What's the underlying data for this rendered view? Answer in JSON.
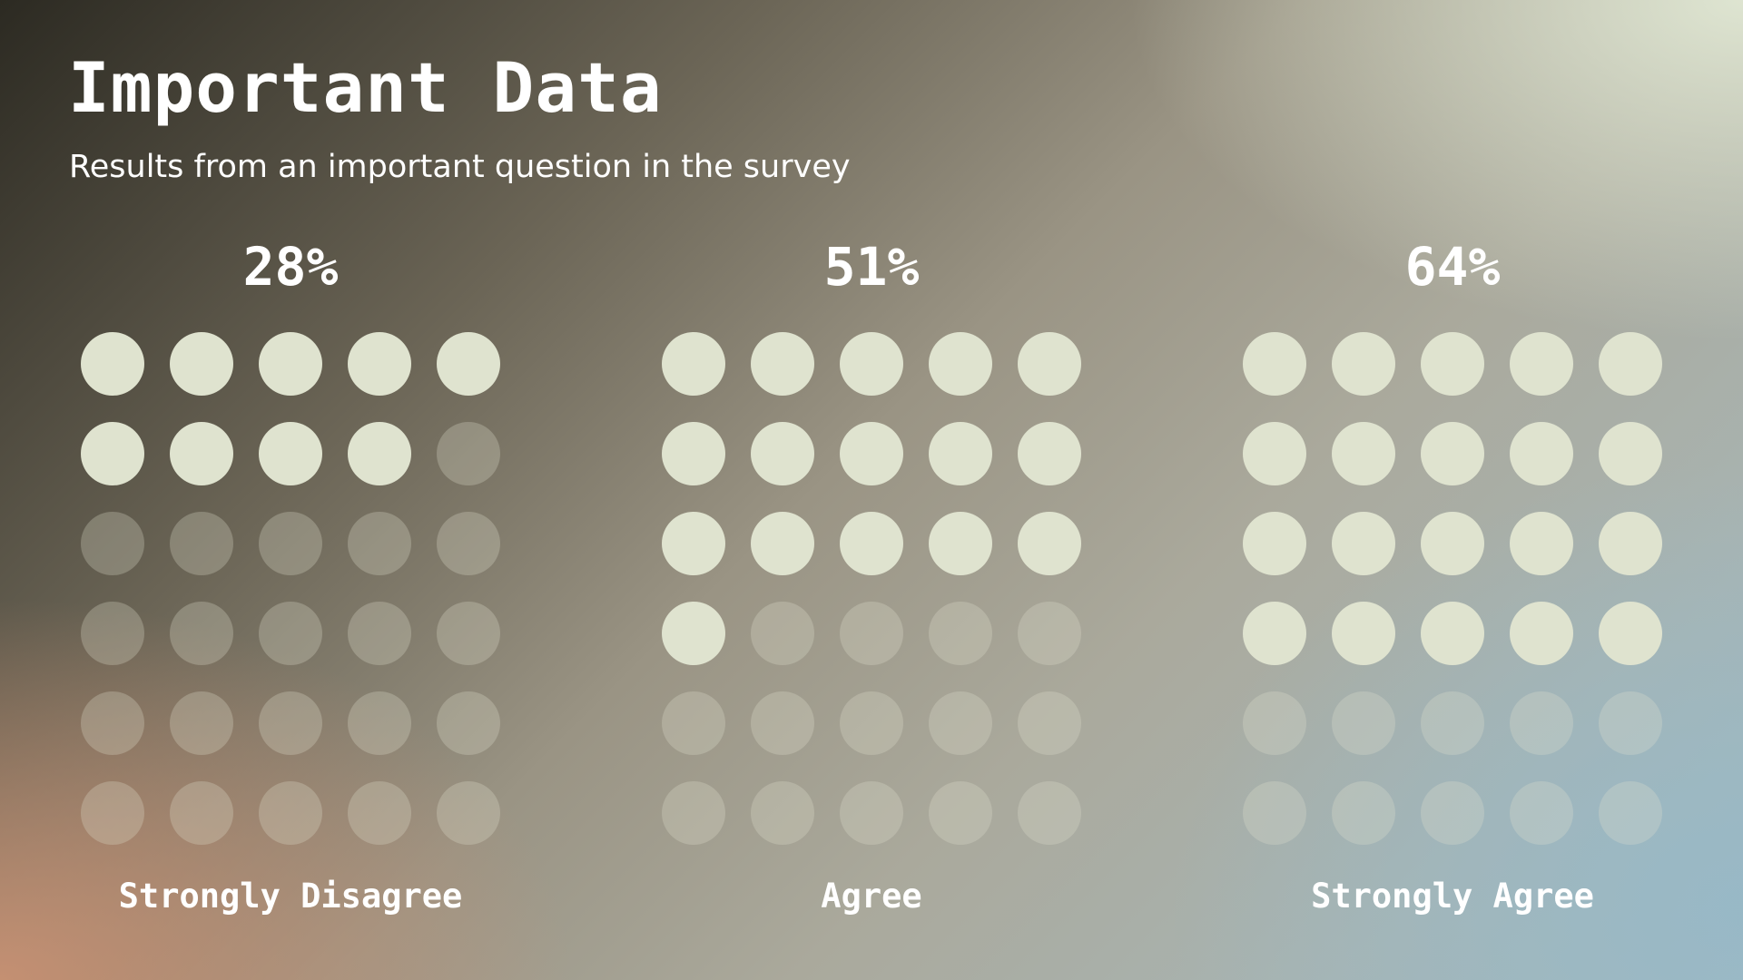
{
  "title": "Important Data",
  "subtitle": "Results from an important question in the survey",
  "chart_data": {
    "type": "waffle",
    "dots_per_chart": 30,
    "grid": "5 columns x 6 rows",
    "series": [
      {
        "label": "Strongly Disagree",
        "percent_label": "28%",
        "value": 28,
        "filled_dots": 9
      },
      {
        "label": "Agree",
        "percent_label": "51%",
        "value": 51,
        "filled_dots": 16
      },
      {
        "label": "Strongly Agree",
        "percent_label": "64%",
        "value": 64,
        "filled_dots": 20
      }
    ],
    "colors": {
      "filled": "#dfe3cf",
      "empty": "translucent"
    }
  }
}
